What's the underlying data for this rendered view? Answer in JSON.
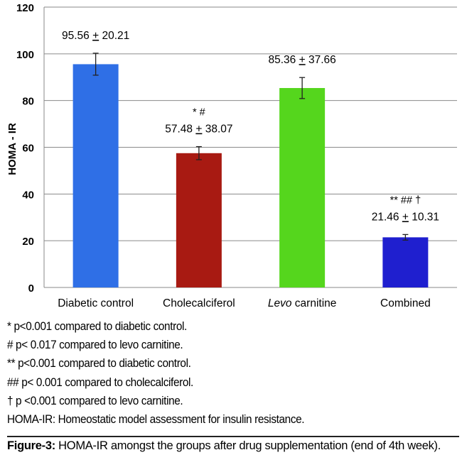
{
  "chart_data": {
    "type": "bar",
    "ylabel": "HOMA - IR",
    "ylim": [
      0,
      120
    ],
    "yticks": [
      0,
      20,
      40,
      60,
      80,
      100,
      120
    ],
    "grid": true,
    "categories": [
      {
        "plain": "Diabetic control",
        "italic": "",
        "rest": ""
      },
      {
        "plain": "Cholecalciferol",
        "italic": "",
        "rest": ""
      },
      {
        "plain": "",
        "italic": "Levo",
        "rest": " carnitine"
      },
      {
        "plain": "Combined",
        "italic": "",
        "rest": ""
      }
    ],
    "values": [
      95.56,
      57.48,
      85.36,
      21.46
    ],
    "error": [
      4.7,
      2.8,
      4.5,
      1.2
    ],
    "value_labels": [
      "95.56 + 20.21",
      "57.48 + 38.07",
      "85.36 + 37.66",
      "21.46 + 10.31"
    ],
    "significance": [
      "",
      "* #",
      "",
      "** ## †"
    ],
    "colors": [
      "#2f6fe6",
      "#a81a12",
      "#55d61d",
      "#1f1fcf"
    ]
  },
  "footnotes": [
    "* p<0.001 compared to diabetic control.",
    "# p< 0.017 compared to levo carnitine.",
    "** p<0.001 compared to diabetic control.",
    "## p< 0.001 compared to cholecalciferol.",
    "† p <0.001 compared to levo carnitine.",
    "HOMA-IR: Homeostatic model assessment for insulin resistance."
  ],
  "caption": {
    "label": "Figure-3:",
    "text": " HOMA-IR amongst the groups after drug supplementation (end of 4th week)."
  }
}
